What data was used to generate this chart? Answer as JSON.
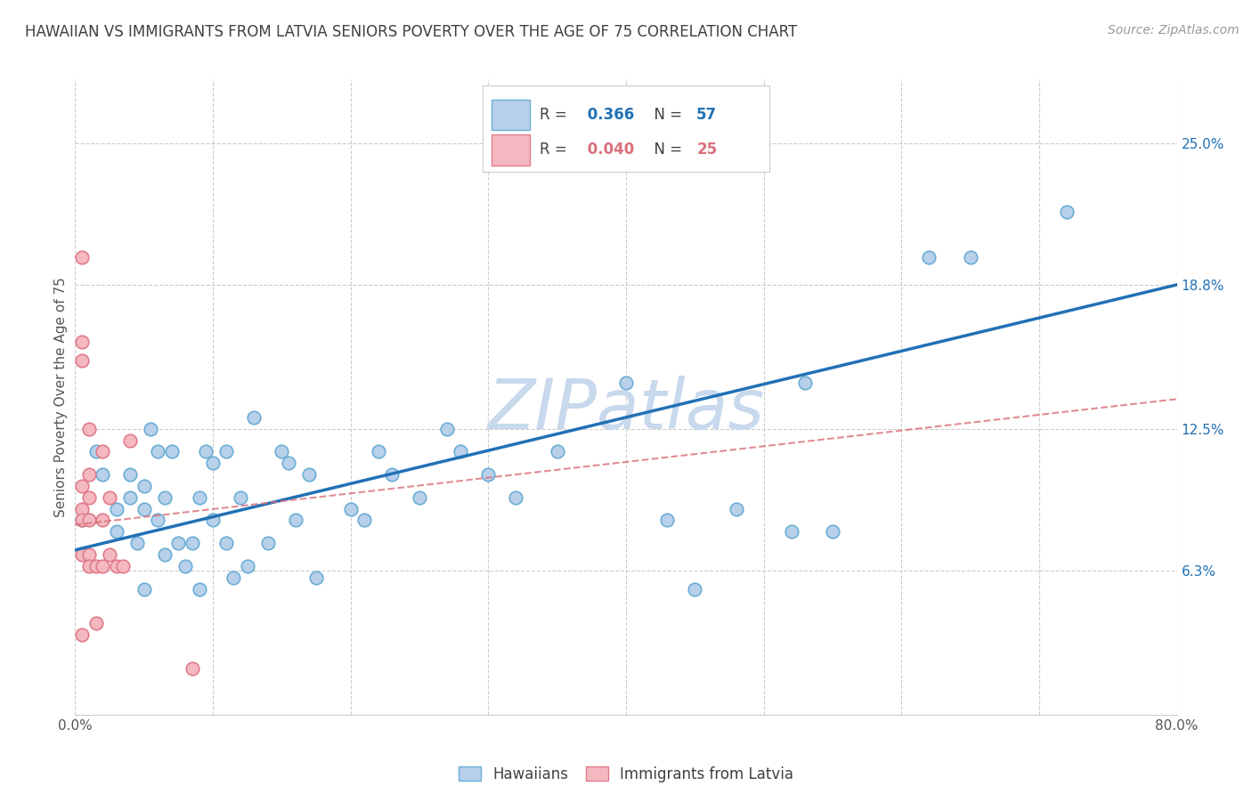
{
  "title": "HAWAIIAN VS IMMIGRANTS FROM LATVIA SENIORS POVERTY OVER THE AGE OF 75 CORRELATION CHART",
  "source": "Source: ZipAtlas.com",
  "ylabel": "Seniors Poverty Over the Age of 75",
  "xlim": [
    0.0,
    0.8
  ],
  "ylim": [
    0.0,
    0.2778
  ],
  "xtick_labels": [
    "0.0%",
    "",
    "",
    "",
    "",
    "",
    "",
    "",
    "80.0%"
  ],
  "xtick_vals": [
    0.0,
    0.1,
    0.2,
    0.3,
    0.4,
    0.5,
    0.6,
    0.7,
    0.8
  ],
  "ytick_labels_right": [
    "25.0%",
    "18.8%",
    "12.5%",
    "6.3%"
  ],
  "ytick_vals_right": [
    0.25,
    0.188,
    0.125,
    0.063
  ],
  "R_blue": 0.366,
  "N_blue": 57,
  "R_pink": 0.04,
  "N_pink": 25,
  "blue_color": "#b8d0ea",
  "blue_edge_color": "#6baed6",
  "pink_color": "#f4b8c1",
  "pink_edge_color": "#e07b8a",
  "line_blue_color": "#2171b5",
  "line_pink_color": "#d9707a",
  "watermark_color": "#c8d8ed",
  "background_color": "#ffffff",
  "grid_color": "#cccccc",
  "title_color": "#404040",
  "source_color": "#999999",
  "blue_x": [
    0.005,
    0.015,
    0.02,
    0.03,
    0.03,
    0.04,
    0.04,
    0.045,
    0.05,
    0.05,
    0.05,
    0.055,
    0.06,
    0.06,
    0.065,
    0.065,
    0.07,
    0.075,
    0.08,
    0.085,
    0.09,
    0.09,
    0.095,
    0.1,
    0.1,
    0.11,
    0.11,
    0.115,
    0.12,
    0.125,
    0.13,
    0.14,
    0.15,
    0.155,
    0.16,
    0.17,
    0.175,
    0.2,
    0.21,
    0.22,
    0.23,
    0.25,
    0.27,
    0.28,
    0.3,
    0.32,
    0.35,
    0.4,
    0.43,
    0.45,
    0.48,
    0.52,
    0.53,
    0.55,
    0.62,
    0.65,
    0.72
  ],
  "blue_y": [
    0.085,
    0.115,
    0.105,
    0.09,
    0.08,
    0.095,
    0.105,
    0.075,
    0.1,
    0.055,
    0.09,
    0.125,
    0.085,
    0.115,
    0.07,
    0.095,
    0.115,
    0.075,
    0.065,
    0.075,
    0.055,
    0.095,
    0.115,
    0.085,
    0.11,
    0.075,
    0.115,
    0.06,
    0.095,
    0.065,
    0.13,
    0.075,
    0.115,
    0.11,
    0.085,
    0.105,
    0.06,
    0.09,
    0.085,
    0.115,
    0.105,
    0.095,
    0.125,
    0.115,
    0.105,
    0.095,
    0.115,
    0.145,
    0.085,
    0.055,
    0.09,
    0.08,
    0.145,
    0.08,
    0.2,
    0.2,
    0.22
  ],
  "pink_x": [
    0.005,
    0.005,
    0.005,
    0.005,
    0.005,
    0.005,
    0.005,
    0.005,
    0.01,
    0.01,
    0.01,
    0.01,
    0.01,
    0.01,
    0.015,
    0.015,
    0.02,
    0.02,
    0.02,
    0.025,
    0.025,
    0.03,
    0.035,
    0.04,
    0.085
  ],
  "pink_y": [
    0.2,
    0.163,
    0.155,
    0.1,
    0.09,
    0.085,
    0.07,
    0.035,
    0.125,
    0.105,
    0.095,
    0.085,
    0.07,
    0.065,
    0.065,
    0.04,
    0.115,
    0.085,
    0.065,
    0.095,
    0.07,
    0.065,
    0.065,
    0.12,
    0.02
  ],
  "blue_trendline_x": [
    0.0,
    0.8
  ],
  "blue_trendline_y": [
    0.072,
    0.188
  ],
  "pink_trendline_x": [
    0.0,
    0.8
  ],
  "pink_trendline_y": [
    0.083,
    0.138
  ],
  "marker_size": 110,
  "marker_linewidth": 1.2
}
